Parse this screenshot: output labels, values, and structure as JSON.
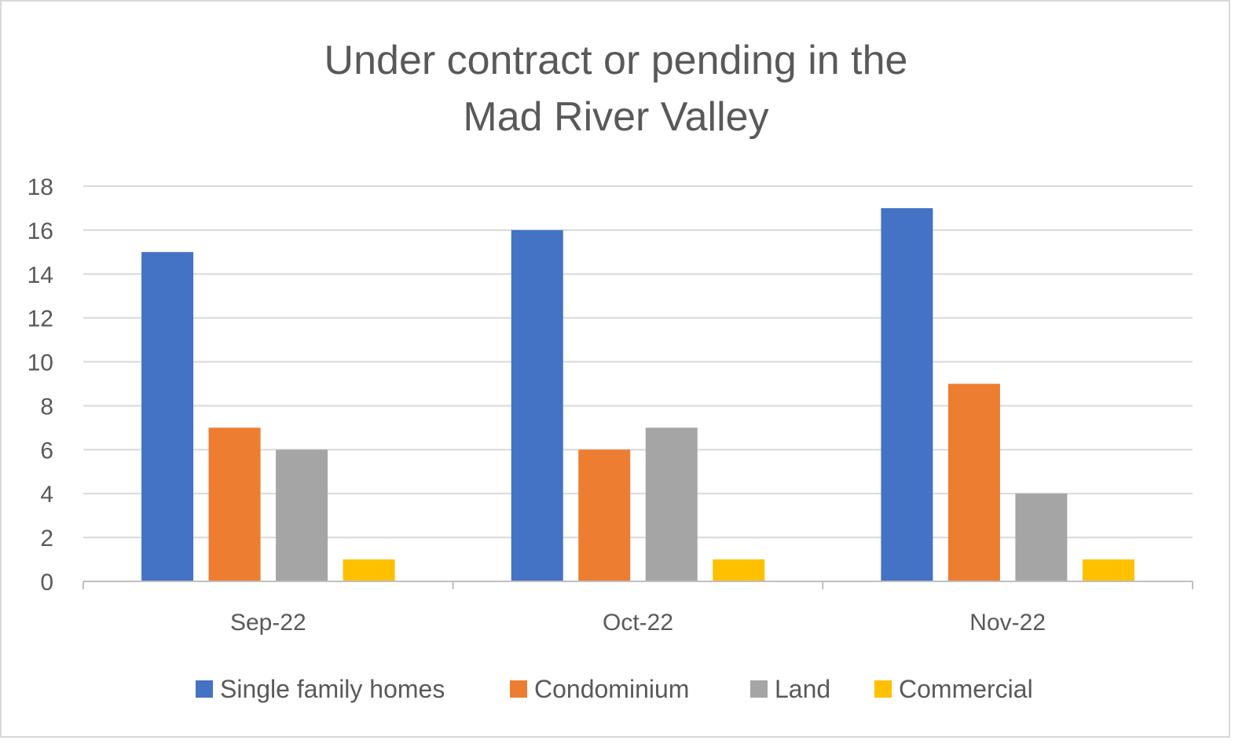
{
  "chart_data": {
    "type": "bar",
    "title_lines": [
      "Under contract or pending in the",
      "Mad River Valley"
    ],
    "categories": [
      "Sep-22",
      "Oct-22",
      "Nov-22"
    ],
    "series": [
      {
        "name": "Single family homes",
        "values": [
          15,
          16,
          17
        ],
        "color": "#4472C4"
      },
      {
        "name": "Condominium",
        "values": [
          7,
          6,
          9
        ],
        "color": "#ED7D31"
      },
      {
        "name": "Land",
        "values": [
          6,
          7,
          4
        ],
        "color": "#A5A5A5"
      },
      {
        "name": "Commercial",
        "values": [
          1,
          1,
          1
        ],
        "color": "#FFC000"
      }
    ],
    "ylim": [
      0,
      18
    ],
    "yticks": [
      0,
      2,
      4,
      6,
      8,
      10,
      12,
      14,
      16,
      18
    ],
    "grid": true,
    "legend_position": "bottom",
    "colors": {
      "gridline": "#d9d9d9",
      "axis": "#bfbfbf",
      "text": "#595959"
    }
  }
}
